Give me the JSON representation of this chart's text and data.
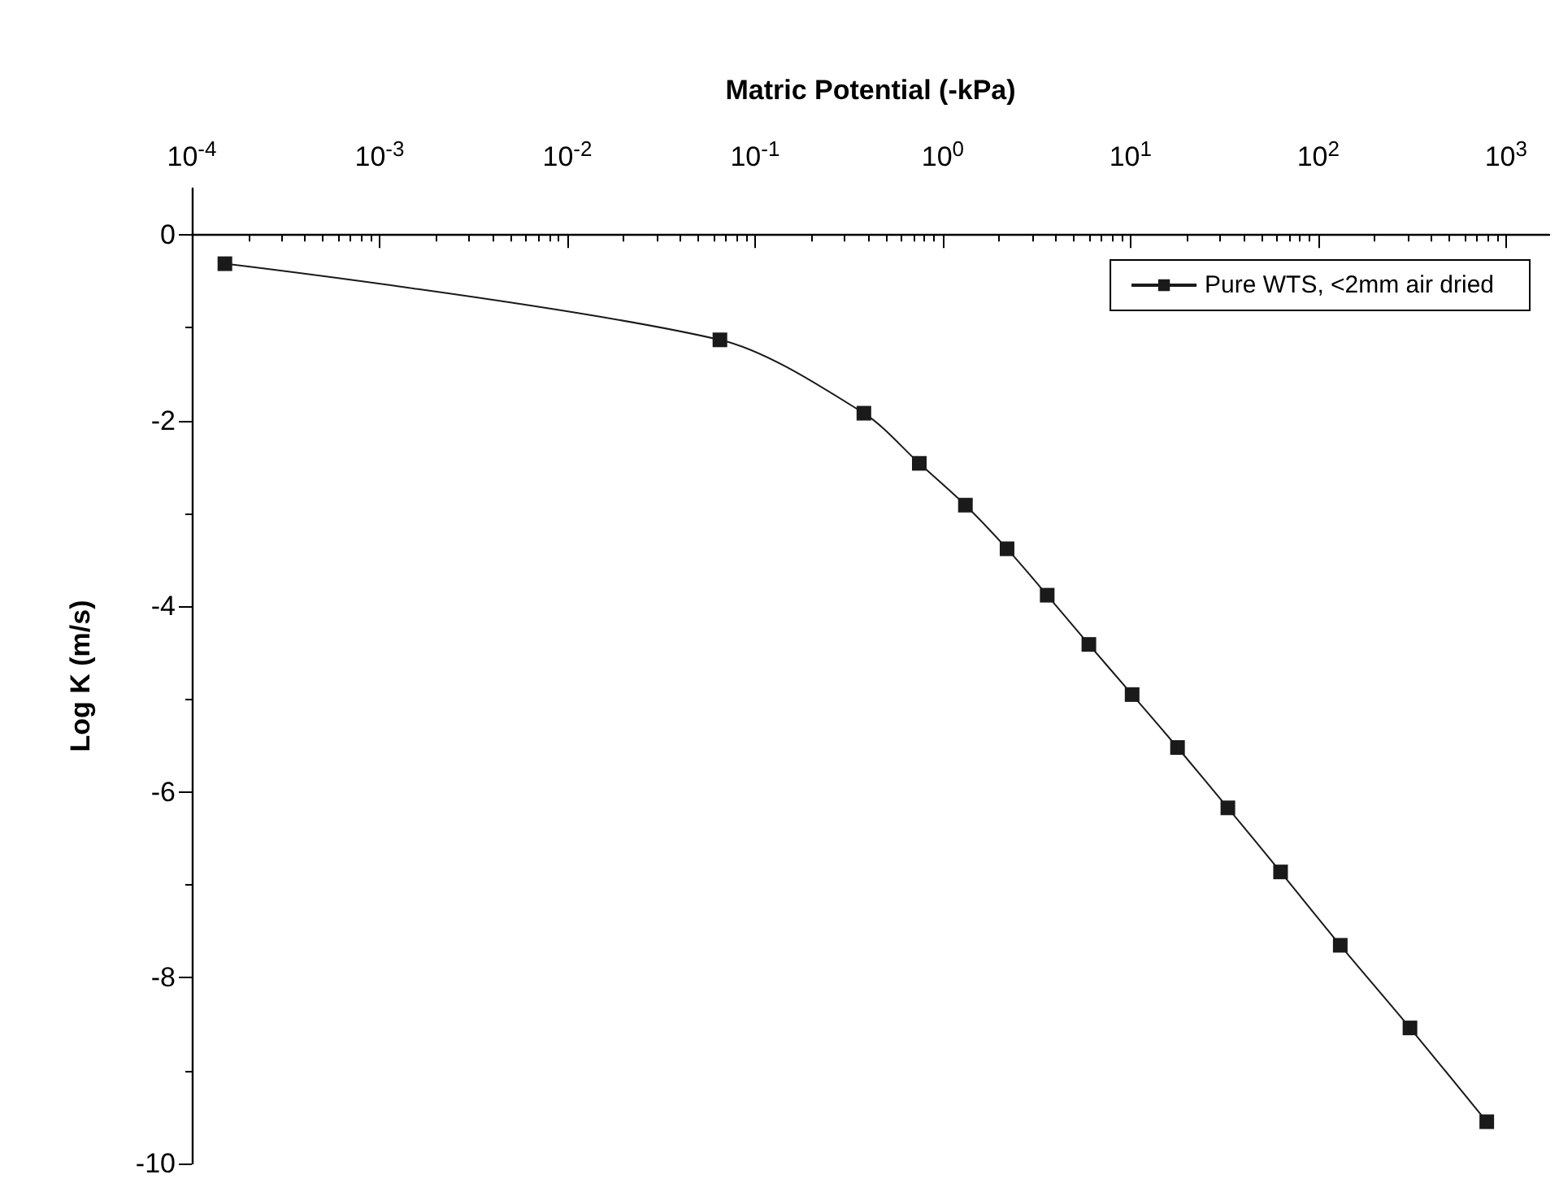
{
  "chart_data": {
    "type": "line",
    "xlabel": "Matric Potential (-kPa)",
    "ylabel": "Log K (m/s)",
    "log": "x",
    "xlim": [
      0.0001,
      1700
    ],
    "ylim": [
      -10,
      0.5
    ],
    "xticks": [
      {
        "value": 0.0001,
        "label": "10$^{-4}$"
      },
      {
        "value": 0.001,
        "label": "10$^{-3}$"
      },
      {
        "value": 0.01,
        "label": "10$^{-2}$"
      },
      {
        "value": 0.1,
        "label": "10$^{-1}$"
      },
      {
        "value": 1,
        "label": "10$^{0}$"
      },
      {
        "value": 10,
        "label": "10$^{1}$"
      },
      {
        "value": 100,
        "label": "10$^{2}$"
      },
      {
        "value": 1000,
        "label": "10$^{3}$"
      }
    ],
    "yticks": [
      -10,
      -8,
      -6,
      -4,
      -2,
      0
    ],
    "grid": false,
    "legend": "top right",
    "marker": "square",
    "line_style": "solid",
    "series": [
      {
        "name": "Pure WTS, <2mm air dried",
        "color": "#1a1a1a",
        "x": [
          0.00015,
          0.065,
          0.38,
          0.75,
          1.32,
          2.2,
          3.6,
          6.0,
          10.2,
          17.8,
          33,
          63,
          131,
          308,
          790
        ],
        "values": [
          -0.31,
          -1.13,
          -1.92,
          -2.46,
          -2.91,
          -3.38,
          -3.88,
          -4.41,
          -4.95,
          -5.52,
          -6.17,
          -6.86,
          -7.65,
          -8.54,
          -9.55
        ]
      }
    ]
  }
}
